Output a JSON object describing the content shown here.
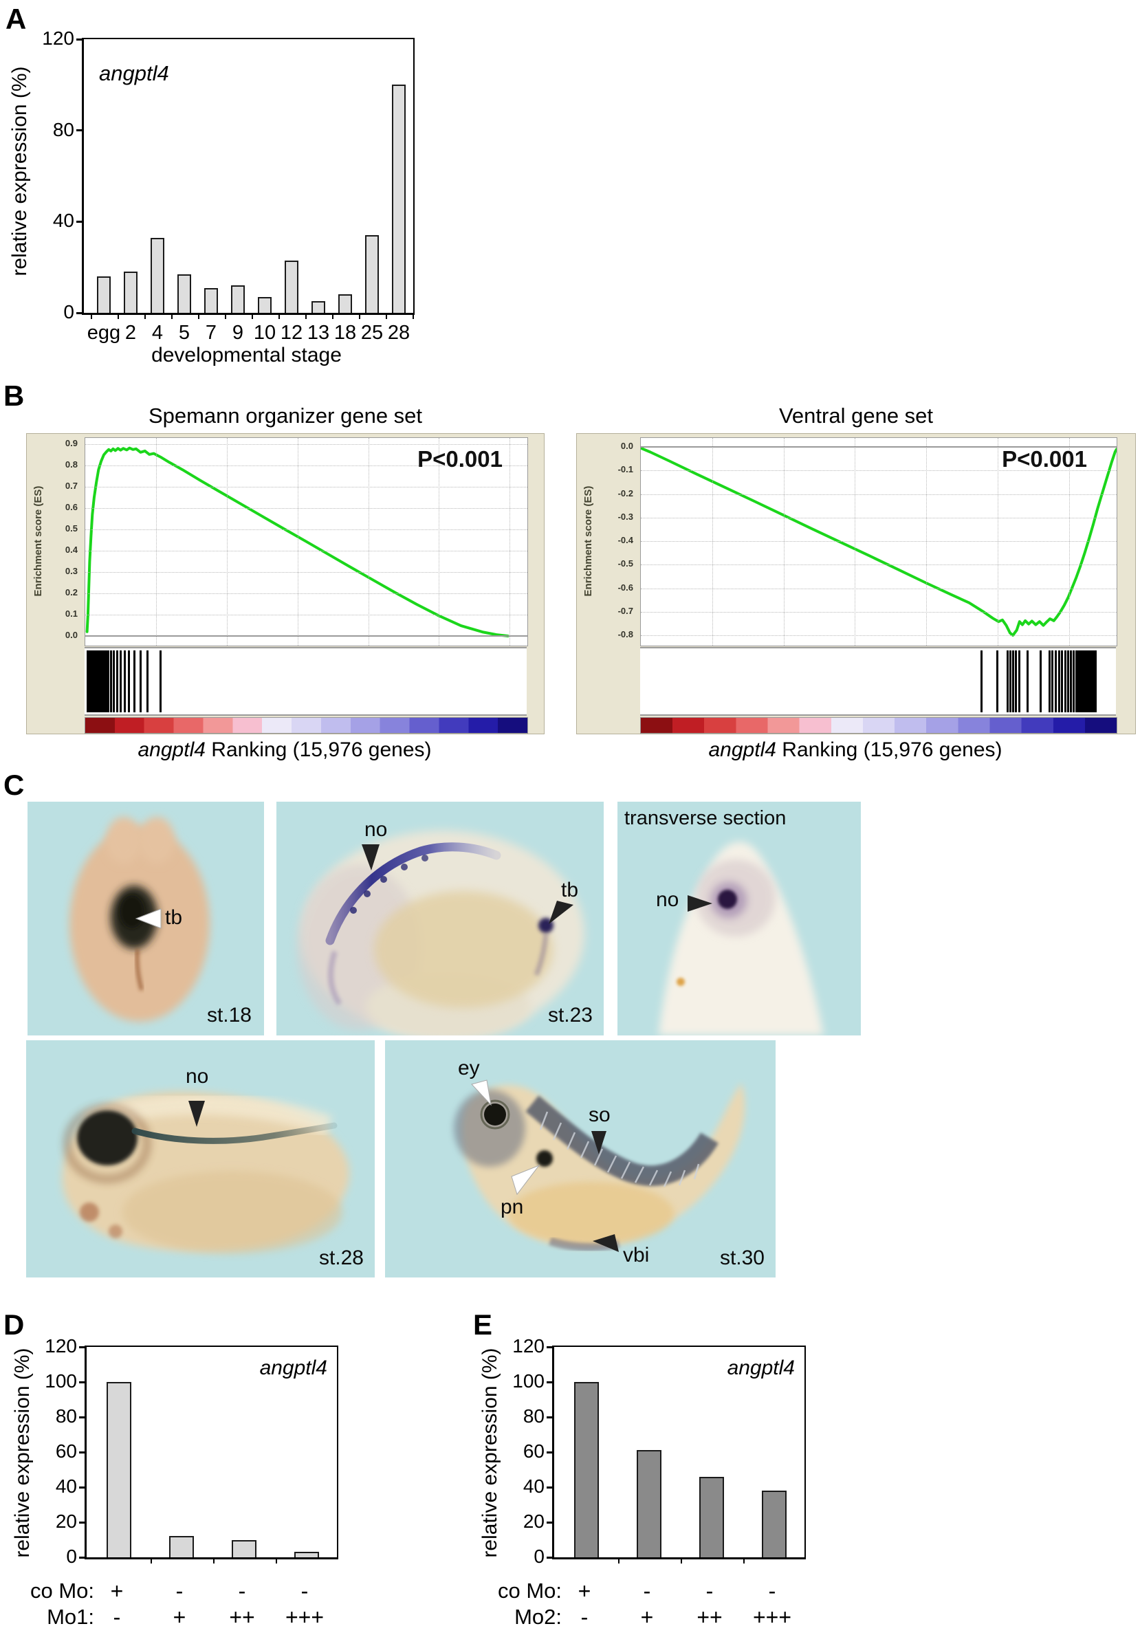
{
  "figure": {
    "panel_labels": {
      "a": "A",
      "b": "B",
      "c": "C",
      "d": "D",
      "e": "E"
    }
  },
  "chart_data": [
    {
      "id": "A",
      "type": "bar",
      "gene_label": "angptl4",
      "ylabel": "relative expression (%)",
      "xlabel": "developmental stage",
      "categories": [
        "egg",
        "2",
        "4",
        "5",
        "7",
        "9",
        "10",
        "12",
        "13",
        "18",
        "25",
        "28"
      ],
      "values": [
        16,
        18,
        33,
        17,
        11,
        12,
        7,
        23,
        5,
        8,
        34,
        100
      ],
      "yticks": [
        120,
        80,
        40,
        0
      ],
      "ylim": [
        0,
        120
      ],
      "bar_color": "#dedede"
    },
    {
      "id": "B-left",
      "type": "line",
      "title": "Spemann organizer gene set",
      "p_value": "P<0.001",
      "ylabel": "Enrichment score (ES)",
      "yticks": [
        "0.9",
        "0.8",
        "0.7",
        "0.6",
        "0.5",
        "0.4",
        "0.3",
        "0.2",
        "0.1",
        "0.0"
      ],
      "es_range": [
        0,
        0.9
      ],
      "curve_color": "#1bd61b",
      "curve": [
        [
          0.004,
          0.02
        ],
        [
          0.006,
          0.1
        ],
        [
          0.008,
          0.22
        ],
        [
          0.01,
          0.35
        ],
        [
          0.013,
          0.47
        ],
        [
          0.016,
          0.57
        ],
        [
          0.02,
          0.65
        ],
        [
          0.025,
          0.72
        ],
        [
          0.03,
          0.78
        ],
        [
          0.036,
          0.82
        ],
        [
          0.042,
          0.85
        ],
        [
          0.048,
          0.865
        ],
        [
          0.053,
          0.875
        ],
        [
          0.058,
          0.868
        ],
        [
          0.063,
          0.878
        ],
        [
          0.068,
          0.87
        ],
        [
          0.074,
          0.88
        ],
        [
          0.08,
          0.872
        ],
        [
          0.086,
          0.88
        ],
        [
          0.094,
          0.873
        ],
        [
          0.1,
          0.882
        ],
        [
          0.108,
          0.875
        ],
        [
          0.115,
          0.878
        ],
        [
          0.125,
          0.862
        ],
        [
          0.135,
          0.868
        ],
        [
          0.145,
          0.852
        ],
        [
          0.155,
          0.856
        ],
        [
          0.17,
          0.84
        ],
        [
          0.19,
          0.815
        ],
        [
          0.22,
          0.78
        ],
        [
          0.26,
          0.73
        ],
        [
          0.3,
          0.682
        ],
        [
          0.35,
          0.622
        ],
        [
          0.4,
          0.562
        ],
        [
          0.45,
          0.502
        ],
        [
          0.5,
          0.443
        ],
        [
          0.55,
          0.383
        ],
        [
          0.6,
          0.323
        ],
        [
          0.65,
          0.264
        ],
        [
          0.7,
          0.205
        ],
        [
          0.75,
          0.148
        ],
        [
          0.8,
          0.095
        ],
        [
          0.85,
          0.048
        ],
        [
          0.9,
          0.018
        ],
        [
          0.93,
          0.006
        ],
        [
          0.956,
          0.0
        ]
      ],
      "barcode": [
        0.004,
        0.007,
        0.01,
        0.013,
        0.016,
        0.019,
        0.022,
        0.025,
        0.028,
        0.031,
        0.034,
        0.037,
        0.04,
        0.043,
        0.046,
        0.052,
        0.058,
        0.064,
        0.071,
        0.079,
        0.088,
        0.098,
        0.11,
        0.124,
        0.14,
        0.17
      ],
      "caption": {
        "gene": "angptl4",
        "text": " Ranking (15,976 genes)"
      }
    },
    {
      "id": "B-right",
      "type": "line",
      "title": "Ventral gene set",
      "p_value": "P<0.001",
      "ylabel": "Enrichment score (ES)",
      "yticks": [
        "0.0",
        "-0.1",
        "-0.2",
        "-0.3",
        "-0.4",
        "-0.5",
        "-0.6",
        "-0.7",
        "-0.8"
      ],
      "es_range": [
        -0.8,
        0
      ],
      "curve_color": "#1bd61b",
      "curve": [
        [
          0.0,
          -0.005
        ],
        [
          0.02,
          -0.022
        ],
        [
          0.06,
          -0.06
        ],
        [
          0.12,
          -0.118
        ],
        [
          0.18,
          -0.175
        ],
        [
          0.24,
          -0.232
        ],
        [
          0.3,
          -0.29
        ],
        [
          0.36,
          -0.348
        ],
        [
          0.42,
          -0.405
        ],
        [
          0.48,
          -0.462
        ],
        [
          0.54,
          -0.52
        ],
        [
          0.6,
          -0.578
        ],
        [
          0.65,
          -0.625
        ],
        [
          0.69,
          -0.662
        ],
        [
          0.72,
          -0.7
        ],
        [
          0.74,
          -0.728
        ],
        [
          0.752,
          -0.742
        ],
        [
          0.76,
          -0.735
        ],
        [
          0.768,
          -0.758
        ],
        [
          0.776,
          -0.79
        ],
        [
          0.782,
          -0.8
        ],
        [
          0.79,
          -0.778
        ],
        [
          0.796,
          -0.742
        ],
        [
          0.802,
          -0.755
        ],
        [
          0.808,
          -0.738
        ],
        [
          0.815,
          -0.752
        ],
        [
          0.822,
          -0.74
        ],
        [
          0.83,
          -0.755
        ],
        [
          0.838,
          -0.742
        ],
        [
          0.846,
          -0.758
        ],
        [
          0.852,
          -0.745
        ],
        [
          0.86,
          -0.73
        ],
        [
          0.868,
          -0.738
        ],
        [
          0.875,
          -0.72
        ],
        [
          0.882,
          -0.7
        ],
        [
          0.89,
          -0.672
        ],
        [
          0.898,
          -0.64
        ],
        [
          0.906,
          -0.6
        ],
        [
          0.915,
          -0.555
        ],
        [
          0.924,
          -0.505
        ],
        [
          0.933,
          -0.45
        ],
        [
          0.942,
          -0.39
        ],
        [
          0.951,
          -0.328
        ],
        [
          0.96,
          -0.262
        ],
        [
          0.97,
          -0.195
        ],
        [
          0.98,
          -0.128
        ],
        [
          0.99,
          -0.062
        ],
        [
          0.997,
          -0.02
        ],
        [
          1.0,
          -0.01
        ]
      ],
      "barcode": [
        0.715,
        0.748,
        0.77,
        0.776,
        0.782,
        0.788,
        0.795,
        0.812,
        0.84,
        0.858,
        0.864,
        0.871,
        0.878,
        0.885,
        0.891,
        0.897,
        0.903,
        0.909,
        0.915,
        0.919,
        0.923,
        0.927,
        0.931,
        0.935,
        0.939,
        0.943,
        0.947,
        0.951,
        0.955
      ],
      "caption": {
        "gene": "angptl4",
        "text": " Ranking (15,976 genes)"
      }
    },
    {
      "id": "D",
      "type": "bar",
      "gene_label": "angptl4",
      "ylabel": "relative expression (%)",
      "values": [
        100,
        12,
        10,
        3
      ],
      "yticks": [
        120,
        100,
        80,
        60,
        40,
        20,
        0
      ],
      "ylim": [
        0,
        120
      ],
      "bar_color": "#d8d8d8",
      "rows": [
        {
          "name": "co Mo:",
          "values": [
            "+",
            "-",
            "-",
            "-"
          ]
        },
        {
          "name": "Mo1:",
          "values": [
            "-",
            "+",
            "++",
            "+++"
          ]
        }
      ]
    },
    {
      "id": "E",
      "type": "bar",
      "gene_label": "angptl4",
      "ylabel": "relative expression (%)",
      "values": [
        100,
        61,
        46,
        38
      ],
      "yticks": [
        120,
        100,
        80,
        60,
        40,
        20,
        0
      ],
      "ylim": [
        0,
        120
      ],
      "bar_color": "#8a8a8a",
      "rows": [
        {
          "name": "co Mo:",
          "values": [
            "+",
            "-",
            "-",
            "-"
          ]
        },
        {
          "name": "Mo2:",
          "values": [
            "-",
            "+",
            "++",
            "+++"
          ]
        }
      ]
    }
  ],
  "gsea_gradient": [
    "#8c0f12",
    "#c01e24",
    "#d84040",
    "#e86868",
    "#f29898",
    "#f7bfd0",
    "#ece9f8",
    "#d9d6f4",
    "#c0bdee",
    "#a5a1e6",
    "#8783dc",
    "#655fce",
    "#423bbd",
    "#241ca8",
    "#150d7e"
  ],
  "panel_c": {
    "bg_color": "#bce0e2",
    "images": [
      {
        "stage_label": "st.18",
        "annotations": [
          {
            "text": "tb"
          }
        ]
      },
      {
        "stage_label": "st.23",
        "annotations": [
          {
            "text": "no"
          },
          {
            "text": "tb"
          }
        ]
      },
      {
        "title": "transverse section",
        "annotations": [
          {
            "text": "no"
          }
        ]
      },
      {
        "stage_label": "st.28",
        "annotations": [
          {
            "text": "no"
          }
        ]
      },
      {
        "stage_label": "st.30",
        "annotations": [
          {
            "text": "ey"
          },
          {
            "text": "pn"
          },
          {
            "text": "so"
          },
          {
            "text": "vbi"
          }
        ]
      }
    ]
  }
}
